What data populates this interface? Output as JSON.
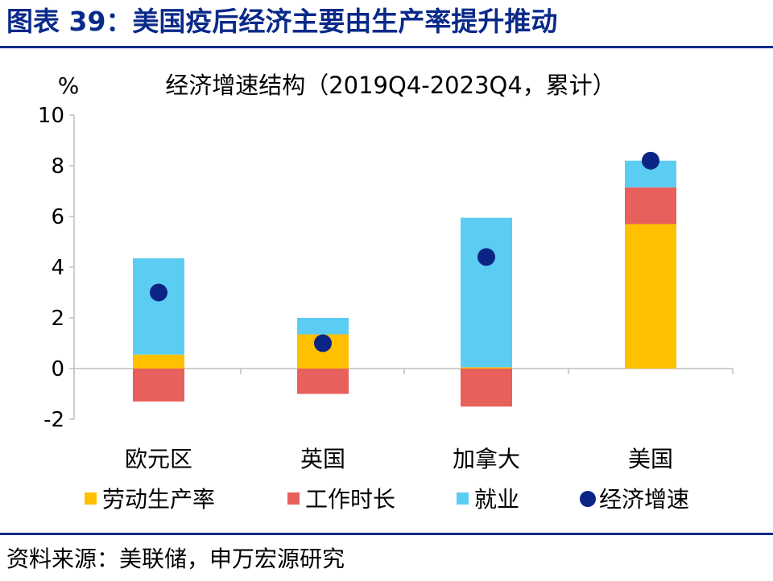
{
  "header": {
    "title": "图表 39：美国疫后经济主要由生产率提升推动"
  },
  "source": "资料来源：美联储，申万宏源研究",
  "colors": {
    "labor_productivity": "#FFC000",
    "hours_worked": "#E8605C",
    "employment": "#5BCDF3",
    "growth_marker": "#0B2586",
    "header_blue": "#0a2a8a"
  },
  "chart_data": {
    "type": "bar",
    "stacked": true,
    "title": "经济增速结构（2019Q4-2023Q4，累计）",
    "ylabel": "%",
    "ylim": [
      -2,
      10
    ],
    "yticks": [
      -2,
      0,
      2,
      4,
      6,
      8,
      10
    ],
    "categories": [
      "欧元区",
      "英国",
      "加拿大",
      "美国"
    ],
    "series": [
      {
        "name": "劳动生产率",
        "kind": "bar",
        "color": "#FFC000",
        "values": [
          0.55,
          1.35,
          0.05,
          5.7
        ]
      },
      {
        "name": "工作时长",
        "kind": "bar",
        "color": "#E8605C",
        "values": [
          -1.3,
          -1.0,
          -1.5,
          1.45
        ]
      },
      {
        "name": "就业",
        "kind": "bar",
        "color": "#5BCDF3",
        "values": [
          3.8,
          0.65,
          5.9,
          1.05
        ]
      },
      {
        "name": "经济增速",
        "kind": "marker",
        "color": "#0B2586",
        "values": [
          3.0,
          1.0,
          4.4,
          8.2
        ]
      }
    ],
    "legend_position": "bottom",
    "grid": false
  }
}
